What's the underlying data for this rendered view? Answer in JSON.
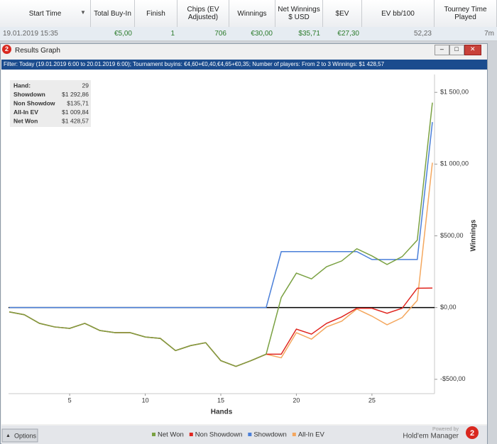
{
  "table": {
    "headers": [
      "Start Time",
      "Total Buy-In",
      "Finish",
      "Chips (EV Adjusted)",
      "Winnings",
      "Net Winnings $ USD",
      "$EV",
      "EV bb/100",
      "Tourney Time Played"
    ],
    "row": [
      "19.01.2019 15:35",
      "€5,00",
      "1",
      "706",
      "€30,00",
      "$35,71",
      "€27,30",
      "52,23",
      "7m"
    ]
  },
  "window": {
    "title": "Results Graph",
    "filter": "Filter: Today (19.01.2019 6:00 to 20.01.2019 6:00); Tournament buyins: €4,60+€0,40,€4,65+€0,35; Number of players: From 2 to 3 Winnings: $1 428,57"
  },
  "stats": [
    {
      "label": "Hand:",
      "value": "29"
    },
    {
      "label": "Showdown",
      "value": "$1 292,86"
    },
    {
      "label": "Non Showdow",
      "value": "$135,71"
    },
    {
      "label": "All-In EV",
      "value": "$1 009,84"
    },
    {
      "label": "Net Won",
      "value": "$1 428,57"
    }
  ],
  "chart_data": {
    "type": "line",
    "x_label": "Hands",
    "y_label": "Winnings",
    "x": [
      1,
      2,
      3,
      4,
      5,
      6,
      7,
      8,
      9,
      10,
      11,
      12,
      13,
      14,
      15,
      16,
      17,
      18,
      19,
      20,
      21,
      22,
      23,
      24,
      25,
      26,
      27,
      28,
      29
    ],
    "xlim": [
      1,
      29
    ],
    "xticks": [
      5,
      10,
      15,
      20,
      25
    ],
    "ylim": [
      -600,
      1600
    ],
    "yticks": [
      {
        "value": -500,
        "label": "-$500,00"
      },
      {
        "value": 0,
        "label": "$0,00"
      },
      {
        "value": 500,
        "label": "$500,00"
      },
      {
        "value": 1000,
        "label": "$1 000,00"
      },
      {
        "value": 1500,
        "label": "$1 500,00"
      }
    ],
    "series": [
      {
        "name": "Net Won",
        "color": "#7aa142",
        "values": [
          -30,
          -50,
          -110,
          -135,
          -145,
          -110,
          -160,
          -175,
          -175,
          -205,
          -215,
          -300,
          -265,
          -245,
          -370,
          -410,
          -370,
          -325,
          70,
          240,
          200,
          285,
          325,
          410,
          360,
          300,
          355,
          470,
          1428.57
        ]
      },
      {
        "name": "Non Showdown",
        "color": "#e0251f",
        "values": [
          -30,
          -50,
          -110,
          -135,
          -145,
          -110,
          -160,
          -175,
          -175,
          -205,
          -215,
          -300,
          -265,
          -245,
          -370,
          -410,
          -370,
          -325,
          -325,
          -150,
          -185,
          -110,
          -65,
          -5,
          -5,
          -40,
          -5,
          135,
          135.71
        ]
      },
      {
        "name": "Showdown",
        "color": "#4a7fd9",
        "values": [
          0,
          0,
          0,
          0,
          0,
          0,
          0,
          0,
          0,
          0,
          0,
          0,
          0,
          0,
          0,
          0,
          0,
          0,
          390,
          390,
          390,
          390,
          390,
          390,
          335,
          335,
          335,
          335,
          1292.86
        ]
      },
      {
        "name": "All-In EV",
        "color": "#f4a75e",
        "values": [
          -30,
          -50,
          -110,
          -135,
          -145,
          -110,
          -160,
          -175,
          -175,
          -205,
          -215,
          -300,
          -265,
          -245,
          -370,
          -410,
          -370,
          -325,
          -350,
          -175,
          -220,
          -135,
          -95,
          -10,
          -60,
          -120,
          -70,
          50,
          1009.84
        ]
      }
    ]
  },
  "footer": {
    "options": "Options",
    "powered": "Powered by",
    "brand": "Hold'em Manager"
  }
}
